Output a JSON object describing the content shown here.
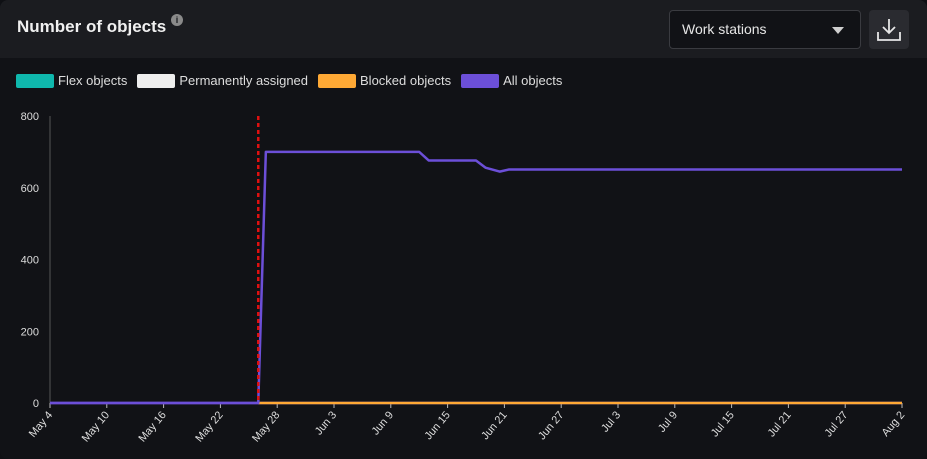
{
  "header": {
    "title": "Number of objects",
    "info_icon": "info-icon",
    "select_value": "Work stations",
    "download_icon": "download-icon"
  },
  "chart_data": {
    "type": "line",
    "title": "Number of objects",
    "legend": [
      {
        "name": "Flex objects",
        "color": "#0fb8ad"
      },
      {
        "name": "Permanently assigned",
        "color": "#eeeeee"
      },
      {
        "name": "Blocked objects",
        "color": "#ffa935"
      },
      {
        "name": "All objects",
        "color": "#6c4fd8"
      }
    ],
    "y_ticks": [
      0,
      200,
      400,
      600,
      800
    ],
    "ylim": [
      0,
      800
    ],
    "x_ticks": [
      "May 4",
      "May 10",
      "May 16",
      "May 22",
      "May 28",
      "Jun 3",
      "Jun 9",
      "Jun 15",
      "Jun 21",
      "Jun 27",
      "Jul 3",
      "Jul 9",
      "Jul 15",
      "Jul 21",
      "Jul 27",
      "Aug 2"
    ],
    "x_range_days": [
      0,
      90
    ],
    "marker_day": 22,
    "series": [
      {
        "name": "All objects",
        "color": "#6c4fd8",
        "points": [
          [
            0,
            0
          ],
          [
            22,
            0
          ],
          [
            22.8,
            700
          ],
          [
            39,
            700
          ],
          [
            40,
            676
          ],
          [
            45,
            676
          ],
          [
            46,
            656
          ],
          [
            47.5,
            645
          ],
          [
            48.5,
            651
          ],
          [
            90,
            651
          ]
        ]
      },
      {
        "name": "Blocked objects",
        "color": "#ffa935",
        "points": [
          [
            22,
            0
          ],
          [
            90,
            0
          ]
        ]
      }
    ]
  }
}
